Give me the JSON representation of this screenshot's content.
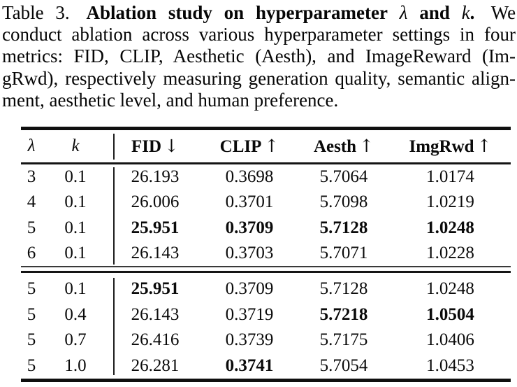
{
  "caption": {
    "label": "Table 3.",
    "title_bold": "Ablation study on hyperparameter",
    "lambda_symbol": "λ",
    "and_word": "and",
    "k_symbol": "k",
    "title_period": ".",
    "sentence_start": "We",
    "line2": "conduct ablation across various hyperparameter settings in four",
    "line3": "metrics: FID, CLIP, Aesthetic (Aesth), and ImageReward (Im-",
    "line4": "gRwd), respectively measuring generation quality, semantic align-",
    "line5": "ment, aesthetic level, and human preference."
  },
  "table": {
    "headers": {
      "lambda": "λ",
      "k": "k",
      "fid": "FID",
      "clip": "CLIP",
      "aesth": "Aesth",
      "imgrwd": "ImgRwd",
      "down_arrow": "↓",
      "up_arrow": "↑"
    },
    "rows": [
      {
        "lambda": "3",
        "k": "0.1",
        "fid": "26.193",
        "clip": "0.3698",
        "aesth": "5.7064",
        "imgrwd": "1.0174",
        "bold": []
      },
      {
        "lambda": "4",
        "k": "0.1",
        "fid": "26.006",
        "clip": "0.3701",
        "aesth": "5.7098",
        "imgrwd": "1.0219",
        "bold": []
      },
      {
        "lambda": "5",
        "k": "0.1",
        "fid": "25.951",
        "clip": "0.3709",
        "aesth": "5.7128",
        "imgrwd": "1.0248",
        "bold": [
          "fid",
          "clip",
          "aesth",
          "imgrwd"
        ]
      },
      {
        "lambda": "6",
        "k": "0.1",
        "fid": "26.143",
        "clip": "0.3703",
        "aesth": "5.7071",
        "imgrwd": "1.0228",
        "bold": []
      },
      {
        "lambda": "5",
        "k": "0.1",
        "fid": "25.951",
        "clip": "0.3709",
        "aesth": "5.7128",
        "imgrwd": "1.0248",
        "bold": [
          "fid"
        ]
      },
      {
        "lambda": "5",
        "k": "0.4",
        "fid": "26.143",
        "clip": "0.3719",
        "aesth": "5.7218",
        "imgrwd": "1.0504",
        "bold": [
          "aesth",
          "imgrwd"
        ]
      },
      {
        "lambda": "5",
        "k": "0.7",
        "fid": "26.416",
        "clip": "0.3739",
        "aesth": "5.7175",
        "imgrwd": "1.0406",
        "bold": []
      },
      {
        "lambda": "5",
        "k": "1.0",
        "fid": "26.281",
        "clip": "0.3741",
        "aesth": "5.7054",
        "imgrwd": "1.0453",
        "bold": [
          "clip"
        ]
      }
    ],
    "colors": {
      "text": "#0a0a0a",
      "rule": "#0f0f0f",
      "background": "#ffffff"
    }
  }
}
